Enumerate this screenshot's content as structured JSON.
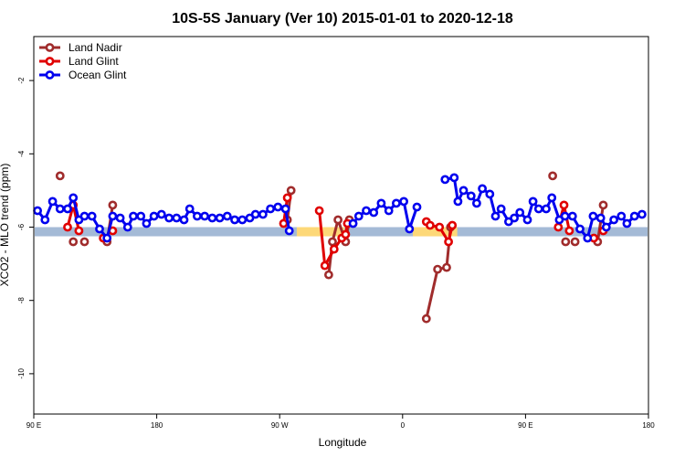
{
  "chart_data": {
    "type": "line",
    "title": "10S-5S January (Ver 10)   2015-01-01 to 2020-12-18",
    "xlabel": "Longitude",
    "ylabel": "XCO2 - MLO trend (ppm)",
    "xlim": [
      0,
      360
    ],
    "ylim": [
      -11.1,
      -0.8
    ],
    "x_ticks": [
      {
        "value": 0,
        "label": "90 E"
      },
      {
        "value": 72,
        "label": "180"
      },
      {
        "value": 144,
        "label": "90 W"
      },
      {
        "value": 216,
        "label": "0"
      },
      {
        "value": 288,
        "label": "90 E"
      },
      {
        "value": 360,
        "label": "180"
      }
    ],
    "y_ticks": [
      {
        "value": -2,
        "label": "-2"
      },
      {
        "value": -4,
        "label": "-4"
      },
      {
        "value": -6,
        "label": "-6"
      },
      {
        "value": -8,
        "label": "-8"
      },
      {
        "value": -10,
        "label": "-10"
      }
    ],
    "grid": false,
    "legend_position": "top-left",
    "band": {
      "y_low": -6.25,
      "y_high": -6.0,
      "color": "#a4bad6"
    },
    "highlights": [
      {
        "x_start": 154,
        "x_end": 182,
        "y_low": -6.25,
        "y_high": -6.0,
        "color": "#fdd878"
      },
      {
        "x_start": 222,
        "x_end": 248,
        "y_low": -6.25,
        "y_high": -6.0,
        "color": "#fdd878"
      }
    ],
    "series": [
      {
        "name": "Land Nadir",
        "color": "#a02c2c",
        "segments": [
          [
            [
              15.4,
              -4.6
            ]
          ],
          [
            [
              23.1,
              -6.4
            ]
          ],
          [
            [
              29.7,
              -6.4
            ]
          ],
          [
            [
              42.9,
              -6.4
            ],
            [
              46.2,
              -5.4
            ]
          ],
          [
            [
              148.5,
              -5.8
            ],
            [
              150.7,
              -5.0
            ]
          ],
          [
            [
              172.7,
              -7.3
            ],
            [
              174.9,
              -6.4
            ],
            [
              178.2,
              -5.8
            ],
            [
              182.6,
              -6.4
            ],
            [
              184.8,
              -5.8
            ]
          ],
          [
            [
              229.9,
              -8.5
            ],
            [
              236.5,
              -7.15
            ],
            [
              241.8,
              -7.1
            ],
            [
              244.1,
              -6.0
            ]
          ],
          [
            [
              303.9,
              -4.6
            ]
          ],
          [
            [
              311.5,
              -6.4
            ]
          ],
          [
            [
              317.0,
              -6.4
            ]
          ],
          [
            [
              330.2,
              -6.4
            ],
            [
              333.5,
              -5.4
            ]
          ]
        ]
      },
      {
        "name": "Land Glint",
        "color": "#e00000",
        "segments": [
          [
            [
              19.8,
              -6.0
            ],
            [
              23.1,
              -5.4
            ],
            [
              26.4,
              -6.1
            ]
          ],
          [
            [
              40.7,
              -6.3
            ]
          ],
          [
            [
              46.2,
              -6.1
            ]
          ],
          [
            [
              146.3,
              -5.9
            ],
            [
              148.5,
              -5.2
            ]
          ],
          [
            [
              167.2,
              -5.55
            ],
            [
              170.5,
              -7.05
            ],
            [
              175.9,
              -6.6
            ],
            [
              180.4,
              -6.3
            ],
            [
              182.6,
              -6.2
            ],
            [
              183.7,
              -5.9
            ]
          ],
          [
            [
              229.9,
              -5.85
            ],
            [
              232.1,
              -5.95
            ],
            [
              237.6,
              -6.0
            ],
            [
              242.9,
              -6.4
            ],
            [
              245.1,
              -5.95
            ]
          ],
          [
            [
              307.2,
              -6.0
            ],
            [
              310.5,
              -5.4
            ],
            [
              313.7,
              -6.1
            ]
          ],
          [
            [
              328.0,
              -6.3
            ]
          ],
          [
            [
              333.5,
              -6.1
            ]
          ]
        ]
      },
      {
        "name": "Ocean Glint",
        "color": "#0000ee",
        "segments": [
          [
            [
              2.2,
              -5.55
            ],
            [
              6.6,
              -5.8
            ],
            [
              11.0,
              -5.3
            ],
            [
              15.4,
              -5.5
            ],
            [
              19.8,
              -5.5
            ],
            [
              23.1,
              -5.2
            ],
            [
              26.4,
              -5.8
            ],
            [
              29.7,
              -5.7
            ],
            [
              34.1,
              -5.7
            ],
            [
              38.5,
              -6.05
            ],
            [
              42.9,
              -6.3
            ],
            [
              46.2,
              -5.7
            ],
            [
              50.6,
              -5.75
            ],
            [
              55.0,
              -6.0
            ],
            [
              58.3,
              -5.7
            ],
            [
              62.7,
              -5.7
            ],
            [
              66.0,
              -5.9
            ],
            [
              70.4,
              -5.7
            ],
            [
              74.8,
              -5.65
            ],
            [
              79.2,
              -5.75
            ],
            [
              83.6,
              -5.75
            ],
            [
              88.0,
              -5.8
            ],
            [
              91.3,
              -5.5
            ],
            [
              95.7,
              -5.7
            ],
            [
              100.1,
              -5.7
            ],
            [
              104.5,
              -5.75
            ],
            [
              108.9,
              -5.75
            ],
            [
              113.3,
              -5.7
            ],
            [
              117.7,
              -5.8
            ],
            [
              122.1,
              -5.8
            ],
            [
              126.5,
              -5.75
            ],
            [
              129.8,
              -5.65
            ],
            [
              134.2,
              -5.65
            ],
            [
              138.6,
              -5.5
            ],
            [
              143.0,
              -5.45
            ],
            [
              147.4,
              -5.5
            ],
            [
              149.6,
              -6.1
            ]
          ],
          [
            [
              187.0,
              -5.9
            ],
            [
              190.3,
              -5.7
            ],
            [
              194.7,
              -5.55
            ],
            [
              199.1,
              -5.6
            ],
            [
              203.5,
              -5.35
            ],
            [
              207.9,
              -5.55
            ],
            [
              212.3,
              -5.35
            ],
            [
              216.7,
              -5.3
            ],
            [
              220.0,
              -6.05
            ],
            [
              224.4,
              -5.45
            ]
          ],
          [
            [
              240.9,
              -4.7
            ],
            [
              246.2,
              -4.65
            ],
            [
              248.4,
              -5.3
            ],
            [
              251.7,
              -5.0
            ],
            [
              256.1,
              -5.15
            ],
            [
              259.4,
              -5.35
            ],
            [
              262.7,
              -4.95
            ],
            [
              267.1,
              -5.1
            ],
            [
              270.4,
              -5.7
            ],
            [
              273.7,
              -5.5
            ],
            [
              278.1,
              -5.85
            ],
            [
              281.4,
              -5.75
            ],
            [
              284.7,
              -5.6
            ],
            [
              289.1,
              -5.8
            ],
            [
              292.4,
              -5.3
            ],
            [
              295.7,
              -5.5
            ],
            [
              300.1,
              -5.5
            ],
            [
              303.4,
              -5.2
            ],
            [
              307.8,
              -5.8
            ],
            [
              311.1,
              -5.7
            ],
            [
              315.5,
              -5.7
            ],
            [
              319.9,
              -6.05
            ],
            [
              324.3,
              -6.3
            ],
            [
              327.6,
              -5.7
            ],
            [
              332.0,
              -5.75
            ],
            [
              335.3,
              -6.0
            ],
            [
              339.7,
              -5.8
            ],
            [
              344.1,
              -5.7
            ],
            [
              347.4,
              -5.9
            ],
            [
              351.8,
              -5.7
            ],
            [
              356.2,
              -5.65
            ]
          ]
        ]
      }
    ]
  }
}
